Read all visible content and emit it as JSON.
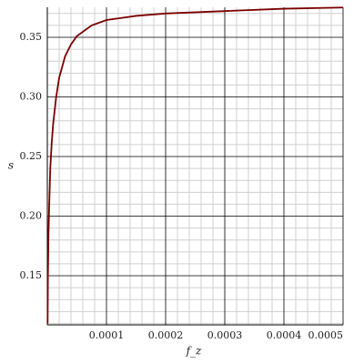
{
  "chart_data": {
    "type": "line",
    "xlabel": "f_z",
    "ylabel": "s",
    "x": [
      5e-07,
      1e-06,
      2e-06,
      3e-06,
      5e-06,
      7.5e-06,
      1e-05,
      1.5e-05,
      2e-05,
      3e-05,
      4e-05,
      5e-05,
      7.5e-05,
      0.0001,
      0.00015,
      0.0002,
      0.0003,
      0.0004,
      0.0005
    ],
    "series": [
      {
        "color": "#7a0000",
        "values": [
          0.11,
          0.15,
          0.185,
          0.206,
          0.24,
          0.262,
          0.278,
          0.3,
          0.316,
          0.334,
          0.344,
          0.351,
          0.36,
          0.3645,
          0.368,
          0.37,
          0.372,
          0.374,
          0.375
        ]
      }
    ],
    "xlim": [
      0,
      0.0005
    ],
    "ylim": [
      0.1088,
      0.3752
    ],
    "xticks": [
      0.0001,
      0.0002,
      0.0003,
      0.0004,
      0.0005
    ],
    "yticks": [
      0.15,
      {
        "value": 0.2,
        "label": "0.20"
      },
      0.25,
      {
        "value": 0.3,
        "label": "0.30"
      },
      0.35
    ],
    "xminorticks": [
      2e-05,
      4e-05,
      6e-05,
      8e-05,
      0.00012,
      0.00014,
      0.00016,
      0.00018,
      0.00022,
      0.00024,
      0.00026,
      0.00028,
      0.00032,
      0.00034,
      0.00036,
      0.00038,
      0.00042,
      0.00044,
      0.00046,
      0.00048
    ],
    "yminorticks": [
      0.11,
      0.12,
      0.13,
      0.14,
      0.16,
      0.17,
      0.18,
      0.19,
      0.21,
      0.22,
      0.23,
      0.24,
      0.26,
      0.27,
      0.28,
      0.29,
      0.31,
      0.32,
      0.33,
      0.34,
      0.36,
      0.37
    ],
    "grid": true
  }
}
